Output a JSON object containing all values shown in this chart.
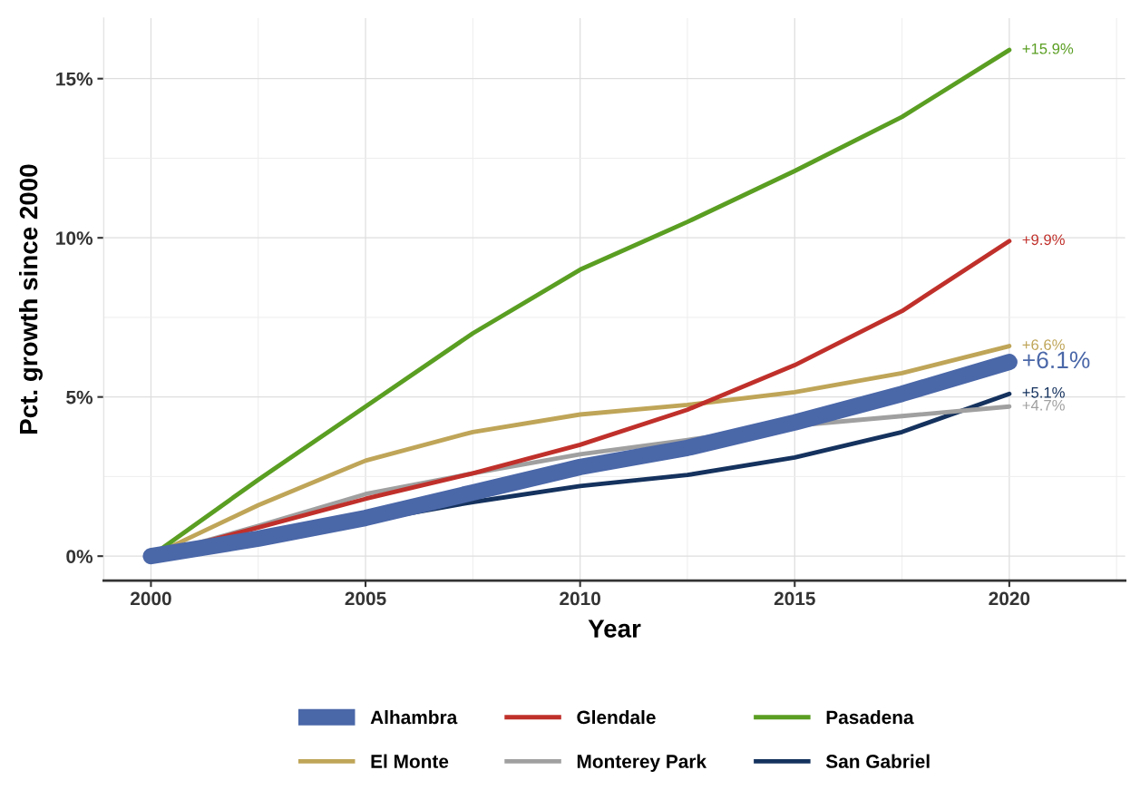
{
  "chart_data": {
    "type": "line",
    "xlabel": "Year",
    "ylabel": "Pct. growth since 2000",
    "x": [
      2000,
      2002.5,
      2005,
      2007.5,
      2010,
      2012.5,
      2015,
      2017.5,
      2020
    ],
    "series": [
      {
        "name": "Alhambra",
        "color": "#4a67a8",
        "values": [
          0,
          0.55,
          1.2,
          2.0,
          2.8,
          3.4,
          4.2,
          5.1,
          6.1
        ],
        "value_labels": [
          null,
          null,
          null,
          null,
          null,
          null,
          null,
          null,
          "+6.1%"
        ]
      },
      {
        "name": "Glendale",
        "color": "#c0302b",
        "values": [
          0,
          0.9,
          1.8,
          2.6,
          3.5,
          4.6,
          6.0,
          7.7,
          9.9
        ],
        "value_labels": [
          null,
          null,
          null,
          null,
          null,
          null,
          null,
          null,
          "+9.9%"
        ]
      },
      {
        "name": "Pasadena",
        "color": "#5a9e22",
        "values": [
          0,
          2.4,
          4.7,
          7.0,
          9.0,
          10.5,
          12.1,
          13.8,
          15.9
        ],
        "value_labels": [
          null,
          null,
          null,
          null,
          null,
          null,
          null,
          null,
          "+15.9%"
        ]
      },
      {
        "name": "El Monte",
        "color": "#bfa558",
        "values": [
          0,
          1.6,
          3.0,
          3.9,
          4.45,
          4.75,
          5.15,
          5.75,
          6.6
        ],
        "value_labels": [
          null,
          null,
          null,
          null,
          null,
          null,
          null,
          null,
          "+6.6%"
        ]
      },
      {
        "name": "Monterey Park",
        "color": "#a0a0a0",
        "values": [
          0,
          0.95,
          1.95,
          2.6,
          3.2,
          3.65,
          4.1,
          4.4,
          4.7
        ],
        "value_labels": [
          null,
          null,
          null,
          null,
          null,
          null,
          null,
          null,
          "+4.7%"
        ]
      },
      {
        "name": "San Gabriel",
        "color": "#15325e",
        "values": [
          0,
          0.55,
          1.1,
          1.7,
          2.2,
          2.55,
          3.1,
          3.9,
          5.1
        ],
        "value_labels": [
          null,
          null,
          null,
          null,
          null,
          null,
          null,
          null,
          "+5.1%"
        ]
      }
    ],
    "xlim": [
      1998.9,
      2022.7
    ],
    "xticks": [
      2000,
      2005,
      2010,
      2015,
      2020
    ],
    "ylim": [
      -0.77,
      16.9
    ],
    "yticks": [
      {
        "value": 0,
        "label": "0%"
      },
      {
        "value": 5,
        "label": "5%"
      },
      {
        "value": 10,
        "label": "10%"
      },
      {
        "value": 15,
        "label": "15%"
      }
    ],
    "grid": true,
    "legend": "bottom",
    "marker": "none",
    "line_style": "solid"
  }
}
